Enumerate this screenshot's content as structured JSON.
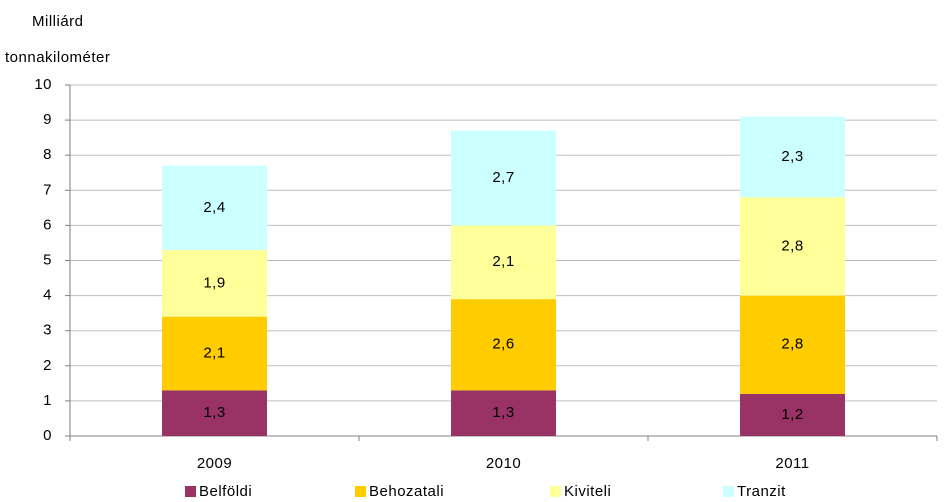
{
  "chart_data": {
    "type": "stacked_bar",
    "y_label": [
      "Milliárd",
      "tonnakilométer"
    ],
    "categories": [
      "2009",
      "2010",
      "2011"
    ],
    "series": [
      {
        "name": "Belföldi",
        "color": "#993366",
        "values": [
          1.3,
          1.3,
          1.2
        ],
        "value_labels": [
          "1,3",
          "1,3",
          "1,2"
        ]
      },
      {
        "name": "Behozatali",
        "color": "#ffcc00",
        "values": [
          2.1,
          2.6,
          2.8
        ],
        "value_labels": [
          "2,1",
          "2,6",
          "2,8"
        ]
      },
      {
        "name": "Kiviteli",
        "color": "#ffff99",
        "values": [
          1.9,
          2.1,
          2.8
        ],
        "value_labels": [
          "1,9",
          "2,1",
          "2,8"
        ]
      },
      {
        "name": "Tranzit",
        "color": "#ccffff",
        "values": [
          2.4,
          2.7,
          2.3
        ],
        "value_labels": [
          "2,4",
          "2,7",
          "2,3"
        ]
      }
    ],
    "ylim": [
      0,
      10
    ],
    "yticks": [
      0,
      1,
      2,
      3,
      4,
      5,
      6,
      7,
      8,
      9,
      10
    ],
    "grid": true,
    "legend": "bottom"
  }
}
